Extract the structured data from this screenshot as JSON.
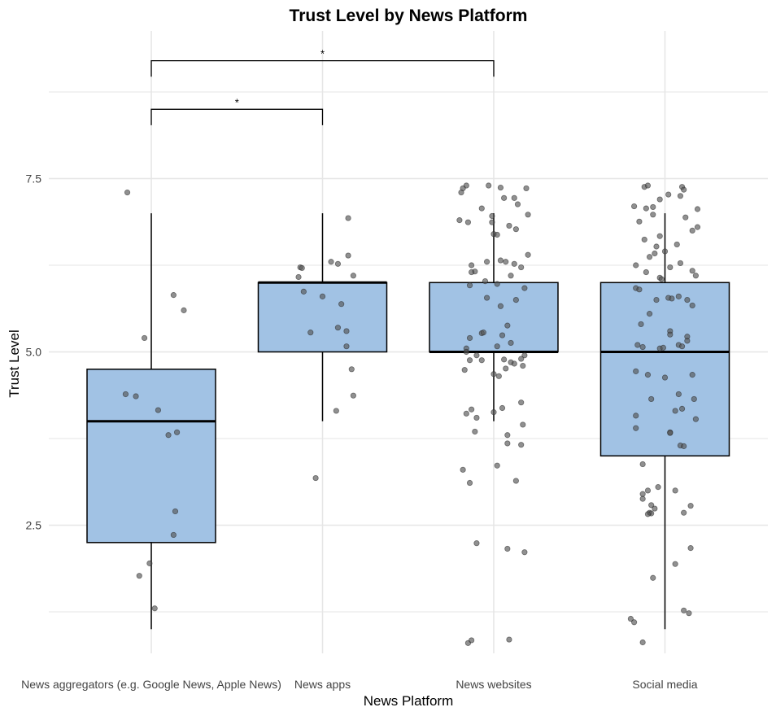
{
  "chart_data": {
    "type": "boxplot",
    "title": "Trust Level by News Platform",
    "xlabel": "News Platform",
    "ylabel": "Trust Level",
    "ylim": [
      0.6,
      9.9
    ],
    "yticks": [
      2.5,
      5.0,
      7.5
    ],
    "ytick_labels": [
      "2.5",
      "5.0",
      "7.5"
    ],
    "minor_yticks": [
      1.25,
      3.75,
      6.25,
      8.75
    ],
    "grid": true,
    "colors": {
      "box_fill": "#a1c2e4",
      "point": "#555555",
      "grid": "#e6e6e6"
    },
    "categories": [
      "News aggregators (e.g. Google News, Apple News)",
      "News apps",
      "News websites",
      "Social media"
    ],
    "boxes": [
      {
        "min": 1.0,
        "q1": 2.25,
        "median": 4.0,
        "q3": 4.75,
        "max": 7.0
      },
      {
        "min": 4.0,
        "q1": 5.0,
        "median": 6.0,
        "q3": 6.0,
        "max": 7.0
      },
      {
        "min": 4.0,
        "q1": 5.0,
        "median": 5.0,
        "q3": 6.0,
        "max": 7.0
      },
      {
        "min": 1.0,
        "q1": 3.5,
        "median": 5.0,
        "q3": 6.0,
        "max": 7.0
      }
    ],
    "points": [
      [
        [
          -0.14,
          7.3
        ],
        [
          0.13,
          5.82
        ],
        [
          0.19,
          5.6
        ],
        [
          -0.04,
          5.2
        ],
        [
          -0.15,
          4.39
        ],
        [
          -0.09,
          4.36
        ],
        [
          0.04,
          4.16
        ],
        [
          0.1,
          3.8
        ],
        [
          0.15,
          3.84
        ],
        [
          0.14,
          2.7
        ],
        [
          0.13,
          2.36
        ],
        [
          -0.01,
          1.95
        ],
        [
          -0.07,
          1.77
        ],
        [
          0.02,
          1.3
        ]
      ],
      [
        [
          0.15,
          6.93
        ],
        [
          -0.13,
          6.22
        ],
        [
          -0.12,
          6.21
        ],
        [
          0.05,
          6.3
        ],
        [
          0.09,
          6.27
        ],
        [
          0.15,
          6.39
        ],
        [
          0.18,
          6.1
        ],
        [
          -0.14,
          6.08
        ],
        [
          -0.11,
          5.87
        ],
        [
          0.0,
          5.8
        ],
        [
          0.11,
          5.69
        ],
        [
          -0.07,
          5.28
        ],
        [
          0.09,
          5.35
        ],
        [
          0.14,
          5.3
        ],
        [
          0.14,
          5.08
        ],
        [
          0.17,
          4.75
        ],
        [
          0.18,
          4.37
        ],
        [
          0.08,
          4.15
        ],
        [
          -0.04,
          3.18
        ]
      ],
      [
        [
          -0.16,
          7.4
        ],
        [
          -0.18,
          7.36
        ],
        [
          -0.03,
          7.4
        ],
        [
          0.04,
          7.37
        ],
        [
          0.19,
          7.36
        ],
        [
          -0.19,
          7.3
        ],
        [
          0.06,
          7.22
        ],
        [
          0.12,
          7.22
        ],
        [
          0.14,
          7.13
        ],
        [
          -0.07,
          7.07
        ],
        [
          -0.2,
          6.9
        ],
        [
          -0.15,
          6.87
        ],
        [
          0.2,
          6.98
        ],
        [
          -0.01,
          6.96
        ],
        [
          -0.01,
          6.87
        ],
        [
          0.09,
          6.82
        ],
        [
          0.13,
          6.77
        ],
        [
          0.0,
          6.7
        ],
        [
          0.02,
          6.69
        ],
        [
          0.2,
          6.4
        ],
        [
          -0.13,
          6.25
        ],
        [
          -0.04,
          6.3
        ],
        [
          0.04,
          6.32
        ],
        [
          0.07,
          6.3
        ],
        [
          0.12,
          6.27
        ],
        [
          0.16,
          6.22
        ],
        [
          -0.11,
          6.16
        ],
        [
          -0.13,
          6.15
        ],
        [
          0.1,
          6.1
        ],
        [
          -0.05,
          6.02
        ],
        [
          -0.14,
          5.96
        ],
        [
          0.02,
          5.98
        ],
        [
          -0.04,
          5.78
        ],
        [
          0.04,
          5.66
        ],
        [
          0.18,
          5.92
        ],
        [
          0.13,
          5.75
        ],
        [
          -0.14,
          5.2
        ],
        [
          -0.07,
          5.27
        ],
        [
          -0.06,
          5.28
        ],
        [
          0.05,
          5.24
        ],
        [
          0.08,
          5.38
        ],
        [
          0.1,
          5.13
        ],
        [
          -0.16,
          5.05
        ],
        [
          -0.16,
          5.0
        ],
        [
          0.02,
          5.08
        ],
        [
          -0.1,
          4.95
        ],
        [
          -0.07,
          4.88
        ],
        [
          0.1,
          4.85
        ],
        [
          0.12,
          4.83
        ],
        [
          0.17,
          4.8
        ],
        [
          0.18,
          4.95
        ],
        [
          0.16,
          4.9
        ],
        [
          -0.14,
          4.88
        ],
        [
          0.06,
          4.89
        ],
        [
          0.07,
          4.76
        ],
        [
          0.0,
          4.68
        ],
        [
          0.03,
          4.65
        ],
        [
          -0.17,
          4.74
        ],
        [
          -0.13,
          4.17
        ],
        [
          -0.16,
          4.11
        ],
        [
          -0.1,
          4.05
        ],
        [
          0.0,
          4.13
        ],
        [
          0.05,
          4.19
        ],
        [
          0.16,
          4.27
        ],
        [
          0.17,
          3.95
        ],
        [
          -0.11,
          3.85
        ],
        [
          0.08,
          3.8
        ],
        [
          0.08,
          3.68
        ],
        [
          0.16,
          3.66
        ],
        [
          0.02,
          3.36
        ],
        [
          -0.18,
          3.3
        ],
        [
          -0.14,
          3.11
        ],
        [
          0.13,
          3.14
        ],
        [
          -0.1,
          2.24
        ],
        [
          0.08,
          2.16
        ],
        [
          0.18,
          2.11
        ],
        [
          -0.15,
          0.8
        ],
        [
          -0.13,
          0.84
        ],
        [
          0.09,
          0.85
        ]
      ],
      [
        [
          -0.12,
          7.38
        ],
        [
          -0.1,
          7.4
        ],
        [
          0.1,
          7.38
        ],
        [
          0.11,
          7.34
        ],
        [
          0.02,
          7.27
        ],
        [
          0.09,
          7.25
        ],
        [
          -0.03,
          7.2
        ],
        [
          -0.07,
          7.09
        ],
        [
          -0.11,
          7.07
        ],
        [
          -0.18,
          7.1
        ],
        [
          0.19,
          7.06
        ],
        [
          0.12,
          6.94
        ],
        [
          -0.15,
          6.88
        ],
        [
          -0.07,
          6.98
        ],
        [
          0.19,
          6.8
        ],
        [
          0.16,
          6.75
        ],
        [
          -0.03,
          6.67
        ],
        [
          -0.12,
          6.62
        ],
        [
          -0.05,
          6.52
        ],
        [
          0.07,
          6.55
        ],
        [
          -0.09,
          6.37
        ],
        [
          -0.06,
          6.42
        ],
        [
          0.0,
          6.45
        ],
        [
          0.03,
          6.22
        ],
        [
          0.09,
          6.28
        ],
        [
          0.16,
          6.17
        ],
        [
          0.18,
          6.1
        ],
        [
          -0.17,
          6.25
        ],
        [
          -0.11,
          6.15
        ],
        [
          -0.03,
          6.07
        ],
        [
          -0.02,
          6.05
        ],
        [
          -0.17,
          5.92
        ],
        [
          -0.15,
          5.9
        ],
        [
          0.02,
          5.78
        ],
        [
          0.04,
          5.77
        ],
        [
          0.08,
          5.8
        ],
        [
          -0.05,
          5.75
        ],
        [
          0.13,
          5.75
        ],
        [
          0.16,
          5.67
        ],
        [
          -0.09,
          5.55
        ],
        [
          -0.14,
          5.4
        ],
        [
          0.03,
          5.3
        ],
        [
          0.03,
          5.25
        ],
        [
          0.13,
          5.22
        ],
        [
          0.13,
          5.16
        ],
        [
          -0.16,
          5.1
        ],
        [
          -0.13,
          5.07
        ],
        [
          0.08,
          5.1
        ],
        [
          -0.03,
          5.05
        ],
        [
          -0.01,
          5.06
        ],
        [
          0.1,
          5.08
        ],
        [
          -0.17,
          4.72
        ],
        [
          -0.1,
          4.67
        ],
        [
          0.0,
          4.63
        ],
        [
          0.16,
          4.67
        ],
        [
          0.08,
          4.39
        ],
        [
          0.1,
          4.18
        ],
        [
          0.06,
          4.15
        ],
        [
          0.17,
          4.32
        ],
        [
          -0.08,
          4.32
        ],
        [
          -0.17,
          4.08
        ],
        [
          -0.17,
          3.9
        ],
        [
          0.18,
          4.03
        ],
        [
          0.03,
          3.84
        ],
        [
          0.03,
          3.83
        ],
        [
          0.09,
          3.65
        ],
        [
          0.11,
          3.64
        ],
        [
          -0.13,
          3.38
        ],
        [
          -0.1,
          3.0
        ],
        [
          -0.13,
          2.95
        ],
        [
          -0.13,
          2.88
        ],
        [
          -0.04,
          3.05
        ],
        [
          0.06,
          3.0
        ],
        [
          -0.08,
          2.79
        ],
        [
          -0.06,
          2.74
        ],
        [
          -0.09,
          2.68
        ],
        [
          -0.08,
          2.67
        ],
        [
          -0.1,
          2.66
        ],
        [
          0.11,
          2.68
        ],
        [
          0.15,
          2.78
        ],
        [
          0.15,
          2.17
        ],
        [
          0.06,
          1.94
        ],
        [
          -0.07,
          1.74
        ],
        [
          -0.2,
          1.15
        ],
        [
          -0.18,
          1.1
        ],
        [
          0.11,
          1.27
        ],
        [
          0.14,
          1.23
        ],
        [
          -0.13,
          0.81
        ]
      ]
    ],
    "comparisons": [
      {
        "from": 0,
        "to": 1,
        "y_bar": 8.5,
        "y_tip": 8.27,
        "label": "*"
      },
      {
        "from": 0,
        "to": 2,
        "y_bar": 9.2,
        "y_tip": 8.97,
        "label": "*"
      }
    ]
  }
}
